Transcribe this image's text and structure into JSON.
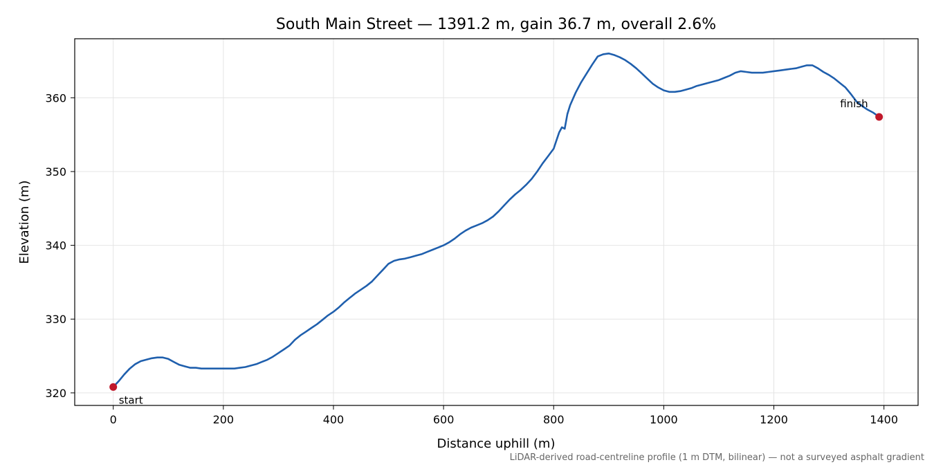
{
  "chart_data": {
    "type": "line",
    "title": "South Main Street — 1391.2 m, gain 36.7 m, overall 2.6%",
    "xlabel": "Distance uphill (m)",
    "ylabel": "Elevation (m)",
    "xlim": [
      -70,
      1462
    ],
    "ylim": [
      318.3,
      368.0
    ],
    "xticks": [
      0,
      200,
      400,
      600,
      800,
      1000,
      1200,
      1400
    ],
    "yticks": [
      320,
      330,
      340,
      350,
      360
    ],
    "grid": true,
    "line_color": "#1f5fad",
    "marker_color": "#c0182b",
    "series": [
      {
        "x": [
          0,
          10,
          20,
          30,
          40,
          50,
          60,
          70,
          80,
          90,
          100,
          110,
          120,
          130,
          140,
          150,
          160,
          170,
          180,
          190,
          200,
          210,
          220,
          230,
          240,
          250,
          260,
          270,
          280,
          290,
          300,
          310,
          320,
          330,
          340,
          350,
          360,
          370,
          380,
          390,
          400,
          410,
          420,
          430,
          440,
          450,
          460,
          470,
          480,
          490,
          500,
          510,
          520,
          530,
          540,
          550,
          560,
          570,
          580,
          590,
          600,
          610,
          620,
          630,
          640,
          650,
          660,
          670,
          680,
          690,
          700,
          710,
          720,
          730,
          740,
          750,
          760,
          770,
          780,
          790,
          800,
          805,
          810,
          815,
          820,
          825,
          830,
          840,
          850,
          860,
          870,
          880,
          890,
          900,
          910,
          920,
          930,
          940,
          950,
          960,
          970,
          980,
          990,
          1000,
          1010,
          1020,
          1030,
          1040,
          1050,
          1060,
          1070,
          1080,
          1090,
          1100,
          1110,
          1120,
          1130,
          1140,
          1150,
          1160,
          1170,
          1180,
          1190,
          1200,
          1210,
          1220,
          1230,
          1240,
          1250,
          1260,
          1270,
          1280,
          1290,
          1300,
          1310,
          1320,
          1330,
          1340,
          1350,
          1360,
          1370,
          1380,
          1391.2
        ],
        "y": [
          320.8,
          321.6,
          322.5,
          323.3,
          323.9,
          324.3,
          324.5,
          324.7,
          324.8,
          324.8,
          324.6,
          324.2,
          323.8,
          323.6,
          323.4,
          323.4,
          323.3,
          323.3,
          323.3,
          323.3,
          323.3,
          323.3,
          323.3,
          323.4,
          323.5,
          323.7,
          323.9,
          324.2,
          324.5,
          324.9,
          325.4,
          325.9,
          326.4,
          327.2,
          327.8,
          328.3,
          328.8,
          329.3,
          329.9,
          330.5,
          331.0,
          331.6,
          332.3,
          332.9,
          333.5,
          334.0,
          334.5,
          335.1,
          335.9,
          336.7,
          337.5,
          337.9,
          338.1,
          338.2,
          338.4,
          338.6,
          338.8,
          339.1,
          339.4,
          339.7,
          340.0,
          340.4,
          340.9,
          341.5,
          342.0,
          342.4,
          342.7,
          343.0,
          343.4,
          343.9,
          344.6,
          345.4,
          346.2,
          346.9,
          347.5,
          348.2,
          349.0,
          350.0,
          351.1,
          352.1,
          353.1,
          354.2,
          355.3,
          356.0,
          355.8,
          357.8,
          359.0,
          360.7,
          362.1,
          363.3,
          364.5,
          365.6,
          365.9,
          366.0,
          365.8,
          365.5,
          365.1,
          364.6,
          364.0,
          363.3,
          362.6,
          361.9,
          361.4,
          361.0,
          360.8,
          360.8,
          360.9,
          361.1,
          361.3,
          361.6,
          361.8,
          362.0,
          362.2,
          362.4,
          362.7,
          363.0,
          363.4,
          363.6,
          363.5,
          363.4,
          363.4,
          363.4,
          363.5,
          363.6,
          363.7,
          363.8,
          363.9,
          364.0,
          364.2,
          364.4,
          364.4,
          364.0,
          363.5,
          363.1,
          362.6,
          362.0,
          361.4,
          360.5,
          359.5,
          358.9,
          358.4,
          358.0,
          357.4
        ]
      }
    ],
    "annotations": [
      {
        "label": "start",
        "x": 0,
        "y": 320.8
      },
      {
        "label": "finish",
        "x": 1391.2,
        "y": 357.4
      }
    ],
    "footnote": "LiDAR-derived road-centreline profile (1 m DTM, bilinear) — not a surveyed asphalt gradient"
  }
}
